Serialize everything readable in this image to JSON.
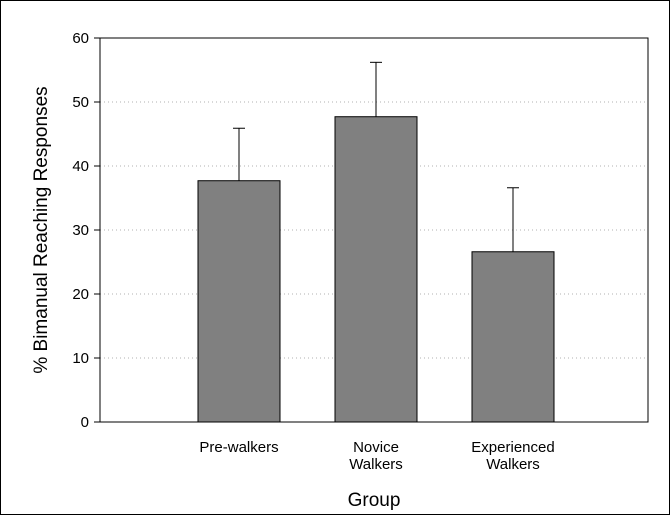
{
  "chart_data": {
    "type": "bar",
    "categories": [
      "Pre-walkers",
      "Novice Walkers",
      "Experienced Walkers"
    ],
    "category_lines": [
      [
        "Pre-walkers"
      ],
      [
        "Novice",
        "Walkers"
      ],
      [
        "Experienced",
        "Walkers"
      ]
    ],
    "values": [
      37.7,
      47.7,
      26.6
    ],
    "error_upper": [
      45.9,
      56.2,
      36.6
    ],
    "xlabel": "Group",
    "ylabel": "% Bimanual Reaching Responses",
    "ylim": [
      0,
      60
    ],
    "yticks": [
      0,
      10,
      20,
      30,
      40,
      50,
      60
    ],
    "grid": "horizontal dotted",
    "bar_color": "#808080"
  }
}
